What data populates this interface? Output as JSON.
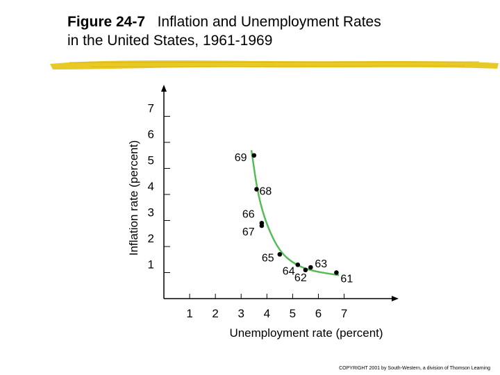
{
  "header": {
    "figure_label": "Figure 24-7",
    "title_line1": "Inflation and Unemployment Rates",
    "title_line2": "in the United States, 1961-1969"
  },
  "chart_data": {
    "type": "scatter",
    "title": "Figure 24-7 Inflation and Unemployment Rates in the United States, 1961-1969",
    "xlabel": "Unemployment rate (percent)",
    "ylabel": "Inflation rate (percent)",
    "xlim": [
      0,
      8.9
    ],
    "ylim": [
      0,
      8
    ],
    "x_ticks": [
      1,
      2,
      3,
      4,
      5,
      6,
      7
    ],
    "y_ticks": [
      1,
      2,
      3,
      4,
      5,
      6,
      7
    ],
    "grid": false,
    "points": [
      {
        "label": "61",
        "x": 6.7,
        "y": 1.0
      },
      {
        "label": "62",
        "x": 5.5,
        "y": 1.1
      },
      {
        "label": "63",
        "x": 5.7,
        "y": 1.2
      },
      {
        "label": "64",
        "x": 5.2,
        "y": 1.3
      },
      {
        "label": "65",
        "x": 4.5,
        "y": 1.7
      },
      {
        "label": "66",
        "x": 3.8,
        "y": 2.9
      },
      {
        "label": "67",
        "x": 3.8,
        "y": 2.8
      },
      {
        "label": "68",
        "x": 3.6,
        "y": 4.2
      },
      {
        "label": "69",
        "x": 3.5,
        "y": 5.5
      }
    ],
    "curve_color": "#55bb55"
  },
  "footer": {
    "copyright": "COPYRIGHT 2001 by South-Western, a division of Thomson Learning"
  },
  "colors": {
    "brush": "#e8c619",
    "curve": "#55bb55",
    "points": "#000000"
  }
}
